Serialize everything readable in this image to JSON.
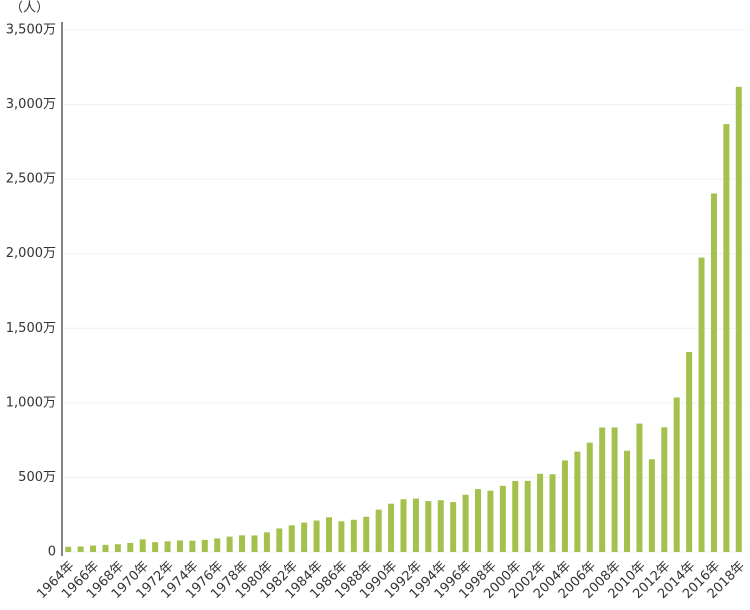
{
  "chart_data": {
    "type": "bar",
    "y_label": "（人）",
    "categories": [
      "1964年",
      null,
      "1966年",
      null,
      "1968年",
      null,
      "1970年",
      null,
      "1972年",
      null,
      "1974年",
      null,
      "1976年",
      null,
      "1978年",
      null,
      "1980年",
      null,
      "1982年",
      null,
      "1984年",
      null,
      "1986年",
      null,
      "1988年",
      null,
      "1990年",
      null,
      "1992年",
      null,
      "1994年",
      null,
      "1996年",
      null,
      "1998年",
      null,
      "2000年",
      null,
      "2002年",
      null,
      "2004年",
      null,
      "2006年",
      null,
      "2008年",
      null,
      "2010年",
      null,
      "2012年",
      null,
      "2014年",
      null,
      "2016年",
      null,
      "2018年"
    ],
    "values": [
      35,
      37,
      43,
      48,
      52,
      61,
      85,
      66,
      72,
      78,
      76,
      81,
      91,
      103,
      112,
      111,
      132,
      158,
      179,
      197,
      211,
      233,
      206,
      216,
      236,
      284,
      324,
      354,
      358,
      341,
      347,
      335,
      384,
      422,
      411,
      444,
      476,
      477,
      524,
      521,
      614,
      673,
      733,
      835,
      835,
      679,
      861,
      622,
      836,
      1036,
      1341,
      1974,
      2404,
      2869,
      3119
    ],
    "color": "#a4c14d",
    "ylim": [
      0,
      3500
    ],
    "yticks": [
      0,
      {
        "value": 500,
        "label": "500万"
      },
      {
        "value": 1000,
        "label": "1,000万"
      },
      {
        "value": 1500,
        "label": "1,500万"
      },
      {
        "value": 2000,
        "label": "2,000万"
      },
      {
        "value": 2500,
        "label": "2,500万"
      },
      {
        "value": 3000,
        "label": "3,000万"
      },
      {
        "value": 3500,
        "label": "3,500万"
      }
    ],
    "grid": true
  }
}
